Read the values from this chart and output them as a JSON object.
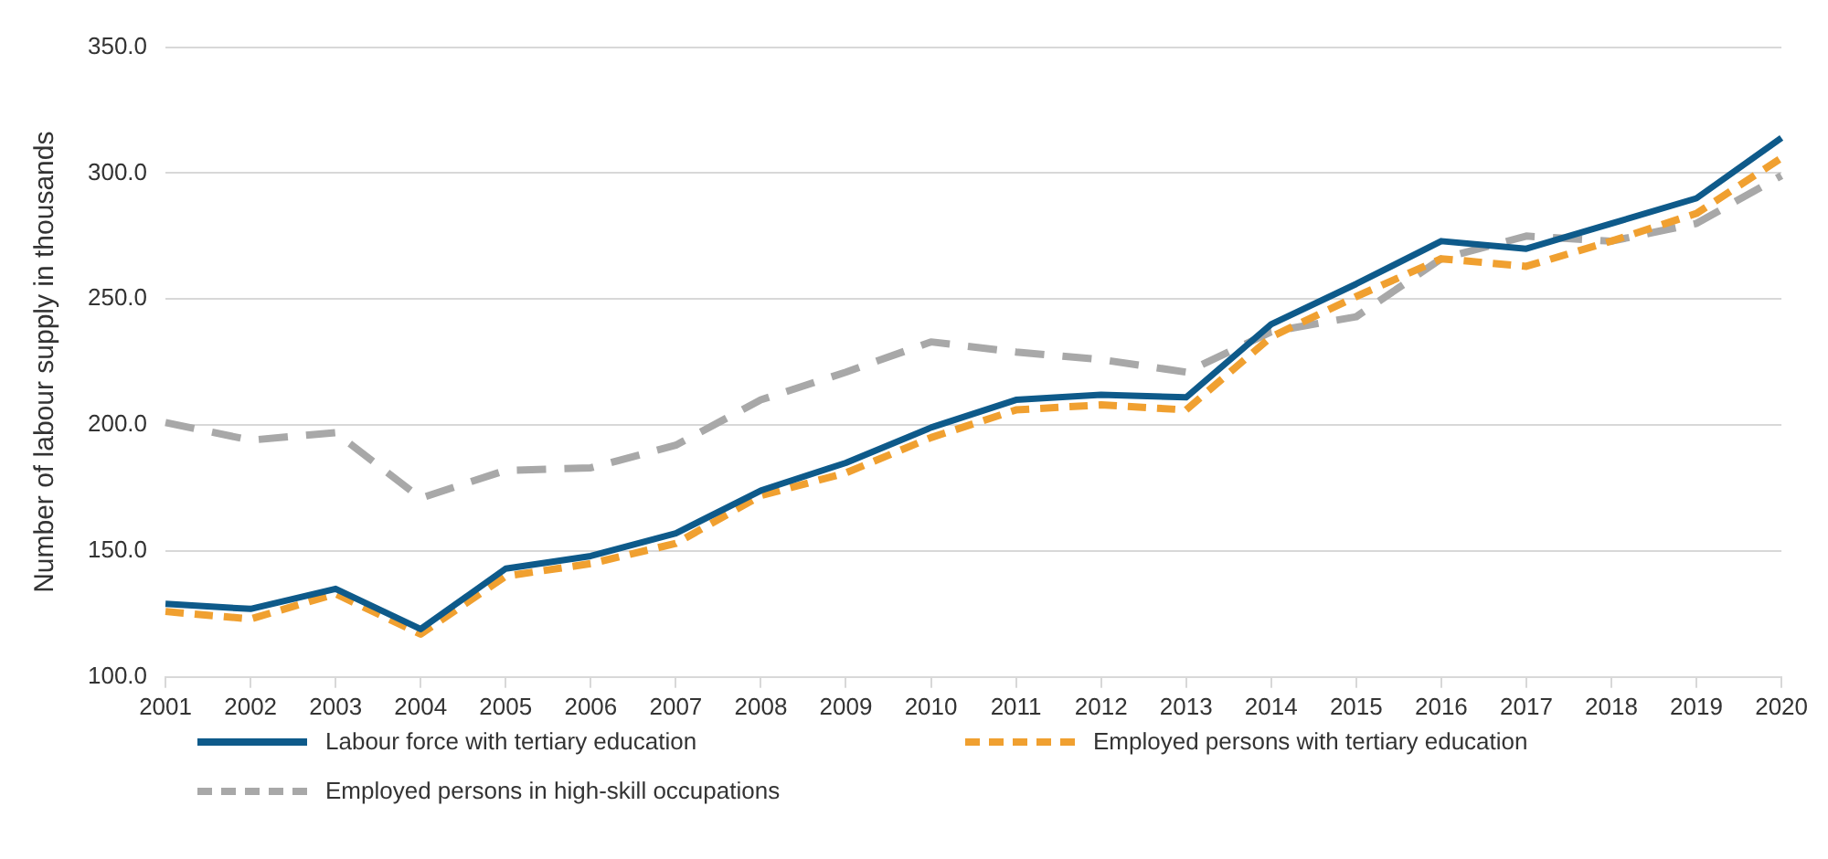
{
  "chart_data": {
    "type": "line",
    "ylabel": "Number of labour supply in thousands",
    "categories": [
      "2001",
      "2002",
      "2003",
      "2004",
      "2005",
      "2006",
      "2007",
      "2008",
      "2009",
      "2010",
      "2011",
      "2012",
      "2013",
      "2014",
      "2015",
      "2016",
      "2017",
      "2018",
      "2019",
      "2020"
    ],
    "series": [
      {
        "name": "Labour force with tertiary education",
        "color": "#0e5a8a",
        "line_style": "solid",
        "values": [
          129,
          127,
          135,
          119,
          143,
          148,
          157,
          174,
          185,
          199,
          210,
          212,
          211,
          240,
          256,
          273,
          270,
          280,
          290,
          314
        ]
      },
      {
        "name": "Employed persons with tertiary education",
        "color": "#f0a030",
        "line_style": "dashed",
        "values": [
          126,
          123,
          133,
          117,
          140,
          145,
          153,
          172,
          181,
          195,
          206,
          208,
          206,
          235,
          251,
          266,
          263,
          273,
          284,
          306
        ]
      },
      {
        "name": "Employed persons in high-skill occupations",
        "color": "#a8a8a8",
        "line_style": "dashed",
        "values": [
          201,
          194,
          197,
          171,
          182,
          183,
          192,
          210,
          221,
          233,
          229,
          226,
          221,
          237,
          243,
          266,
          275,
          273,
          280,
          299
        ]
      }
    ],
    "ylim": [
      100,
      350
    ],
    "yticks": [
      {
        "value": 100,
        "label": "100.0"
      },
      {
        "value": 150,
        "label": "150.0"
      },
      {
        "value": 200,
        "label": "200.0"
      },
      {
        "value": 250,
        "label": "250.0"
      },
      {
        "value": 300,
        "label": "300.0"
      },
      {
        "value": 350,
        "label": "350.0"
      }
    ],
    "grid": "y",
    "legend": "bottom",
    "marker": "none"
  }
}
